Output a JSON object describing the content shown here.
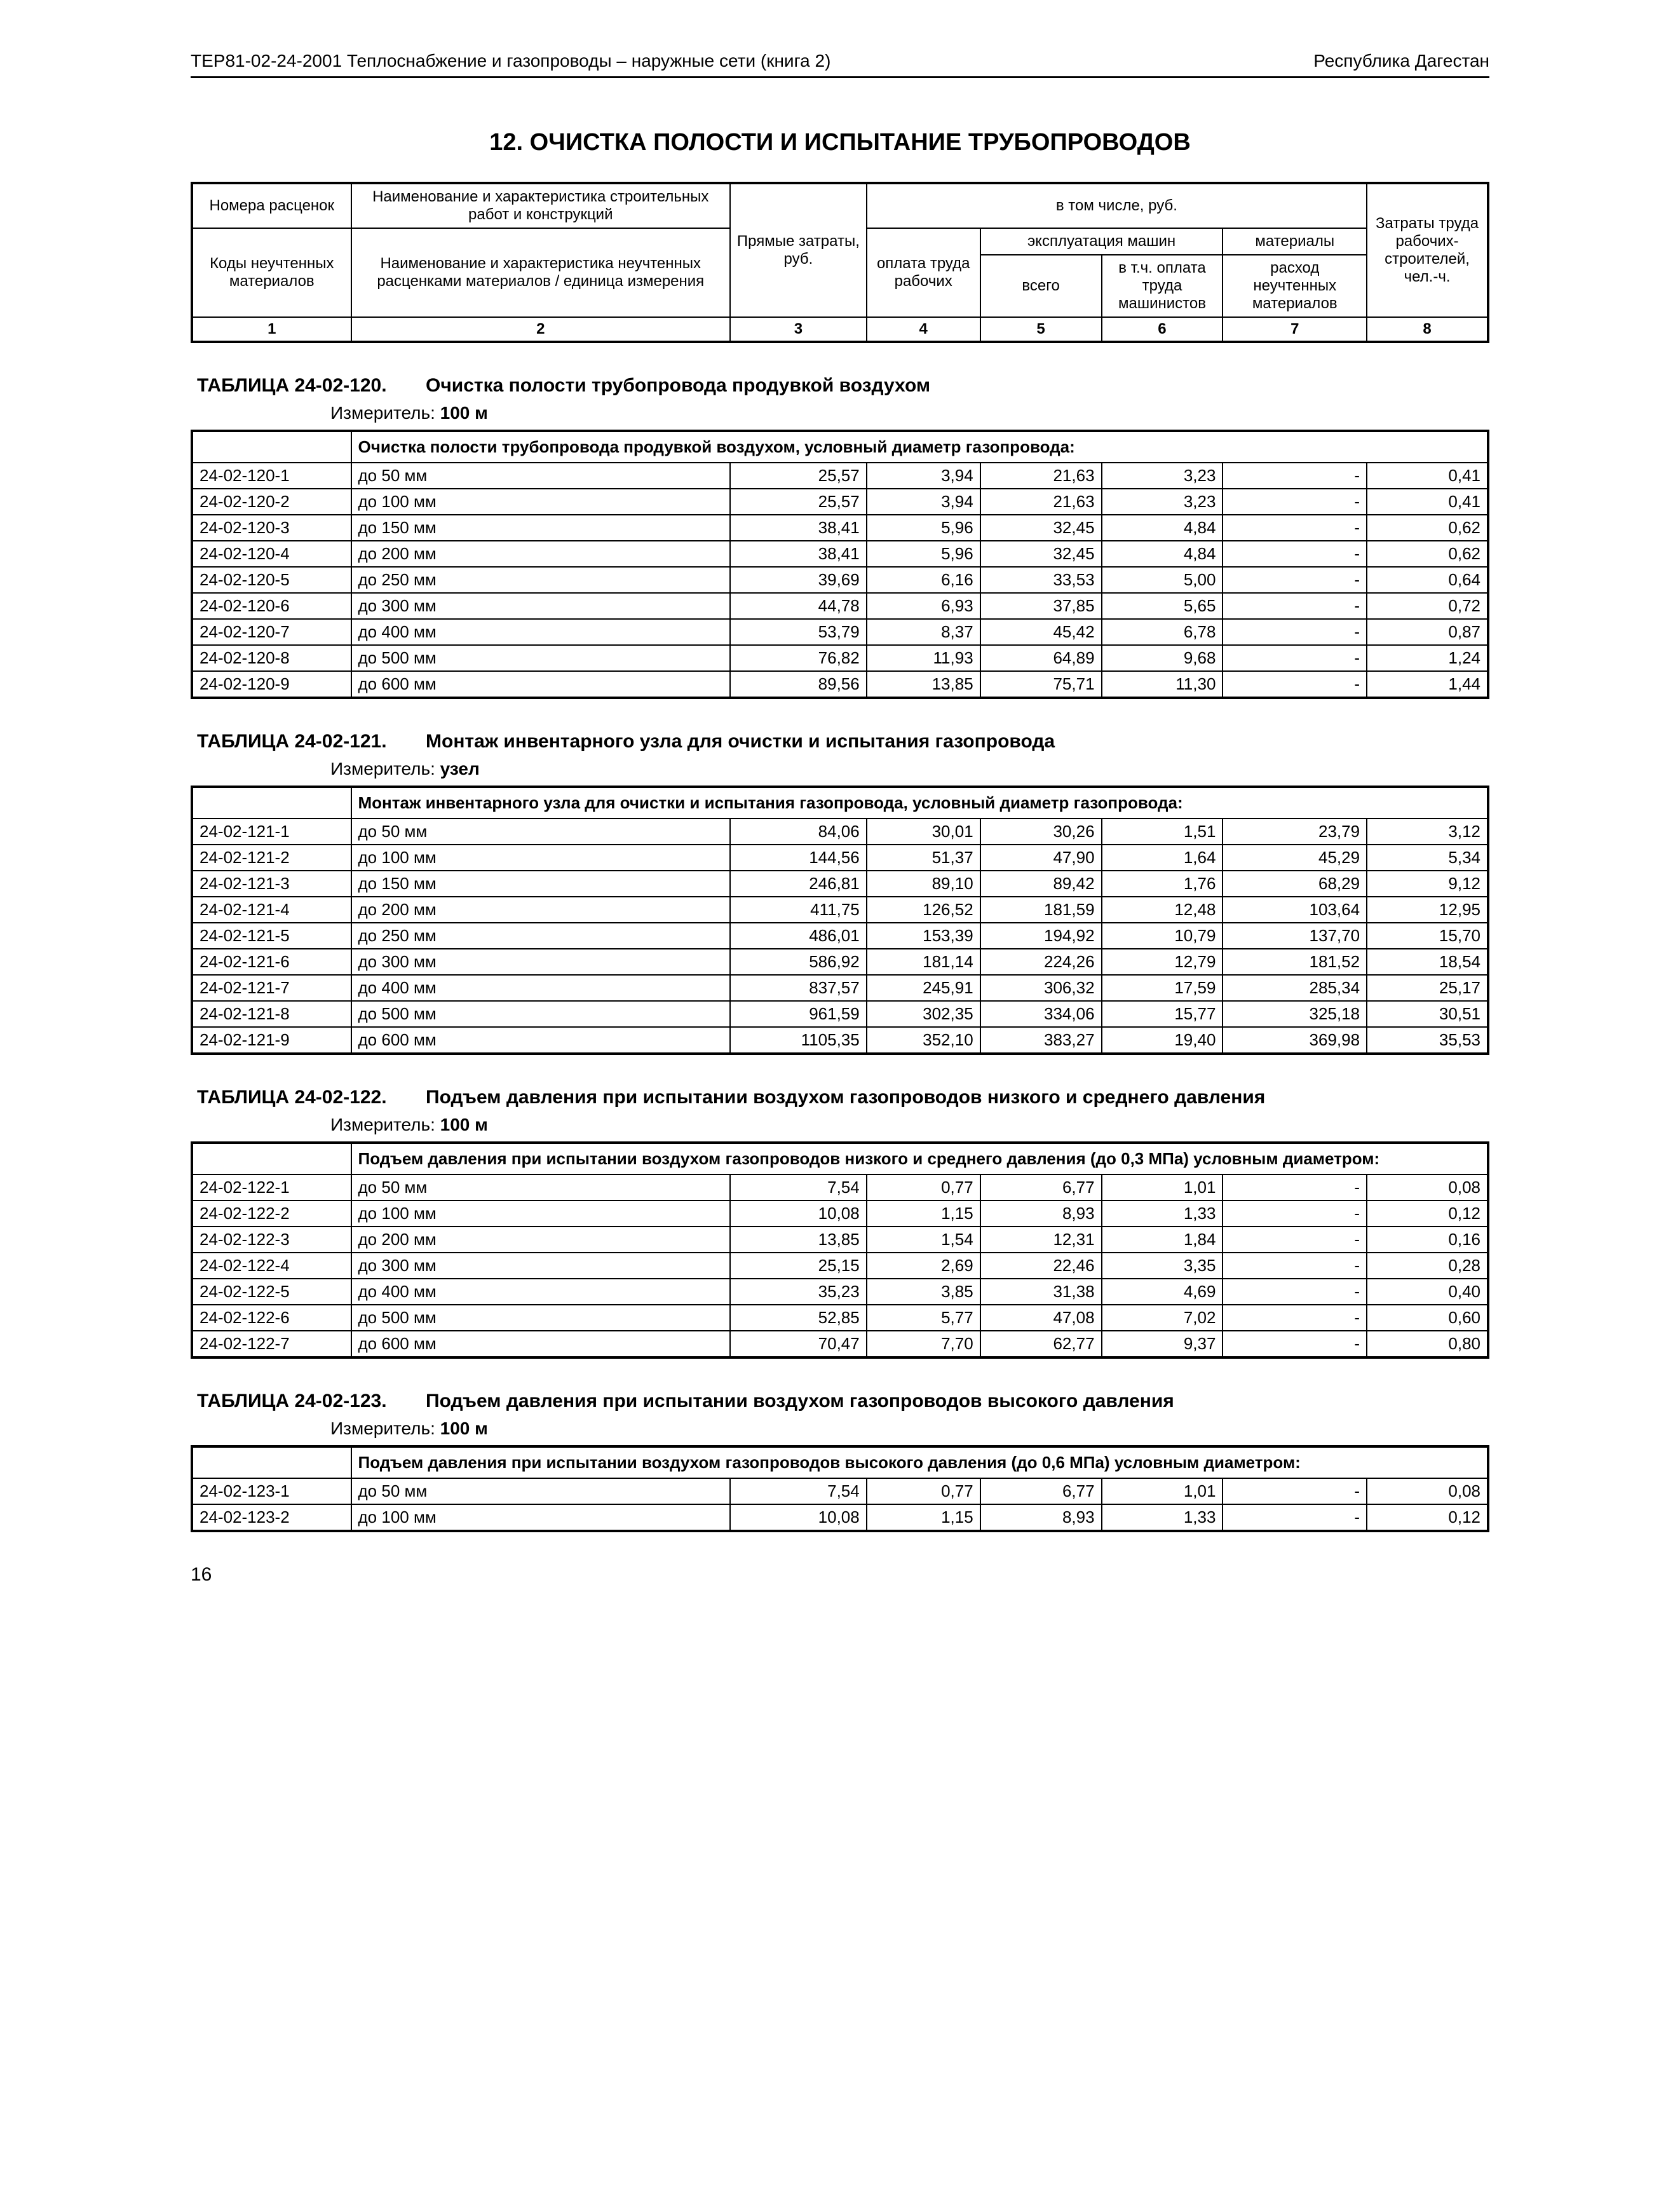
{
  "header_left": "ТЕР81-02-24-2001  Теплоснабжение и газопроводы – наружные сети (книга 2)",
  "header_right": "Республика Дагестан",
  "section_title": "12. ОЧИСТКА ПОЛОСТИ И ИСПЫТАНИЕ ТРУБОПРОВОДОВ",
  "head": {
    "r1c1": "Номера расценок",
    "r1c2": "Наименование и характеристика строительных работ и конструкций",
    "r1c3": "Прямые затраты, руб.",
    "r1c4_group": "в том числе, руб.",
    "r1c8": "Затраты труда рабочих-строителей, чел.-ч.",
    "r2c4": "оплата труда рабочих",
    "r2c5_group": "эксплуатация машин",
    "r2c7": "материалы",
    "r3c1": "Коды неучтенных материалов",
    "r3c2": "Наименование и характеристика неучтенных расценками материалов / единица измерения",
    "r3c5": "всего",
    "r3c6": "в т.ч. оплата труда машинистов",
    "r3c7": "расход неучтенных материалов",
    "idx": [
      "1",
      "2",
      "3",
      "4",
      "5",
      "6",
      "7",
      "8"
    ]
  },
  "tables": [
    {
      "code": "ТАБЛИЦА  24-02-120.",
      "title": "Очистка полости трубопровода продувкой воздухом",
      "measure_label": "Измеритель:",
      "measure_value": "100 м",
      "group_header": "Очистка полости трубопровода продувкой воздухом, условный диаметр газопровода:",
      "rows": [
        [
          "24-02-120-1",
          "до 50 мм",
          "25,57",
          "3,94",
          "21,63",
          "3,23",
          "-",
          "0,41"
        ],
        [
          "24-02-120-2",
          "до 100 мм",
          "25,57",
          "3,94",
          "21,63",
          "3,23",
          "-",
          "0,41"
        ],
        [
          "24-02-120-3",
          "до 150 мм",
          "38,41",
          "5,96",
          "32,45",
          "4,84",
          "-",
          "0,62"
        ],
        [
          "24-02-120-4",
          "до 200 мм",
          "38,41",
          "5,96",
          "32,45",
          "4,84",
          "-",
          "0,62"
        ],
        [
          "24-02-120-5",
          "до 250 мм",
          "39,69",
          "6,16",
          "33,53",
          "5,00",
          "-",
          "0,64"
        ],
        [
          "24-02-120-6",
          "до 300 мм",
          "44,78",
          "6,93",
          "37,85",
          "5,65",
          "-",
          "0,72"
        ],
        [
          "24-02-120-7",
          "до 400 мм",
          "53,79",
          "8,37",
          "45,42",
          "6,78",
          "-",
          "0,87"
        ],
        [
          "24-02-120-8",
          "до 500 мм",
          "76,82",
          "11,93",
          "64,89",
          "9,68",
          "-",
          "1,24"
        ],
        [
          "24-02-120-9",
          "до 600 мм",
          "89,56",
          "13,85",
          "75,71",
          "11,30",
          "-",
          "1,44"
        ]
      ]
    },
    {
      "code": "ТАБЛИЦА  24-02-121.",
      "title": "Монтаж инвентарного узла для очистки и испытания газопровода",
      "measure_label": "Измеритель:",
      "measure_value": "узел",
      "group_header": "Монтаж инвентарного узла для очистки и испытания газопровода, условный диаметр газопровода:",
      "rows": [
        [
          "24-02-121-1",
          "до 50 мм",
          "84,06",
          "30,01",
          "30,26",
          "1,51",
          "23,79",
          "3,12"
        ],
        [
          "24-02-121-2",
          "до 100 мм",
          "144,56",
          "51,37",
          "47,90",
          "1,64",
          "45,29",
          "5,34"
        ],
        [
          "24-02-121-3",
          "до 150 мм",
          "246,81",
          "89,10",
          "89,42",
          "1,76",
          "68,29",
          "9,12"
        ],
        [
          "24-02-121-4",
          "до 200 мм",
          "411,75",
          "126,52",
          "181,59",
          "12,48",
          "103,64",
          "12,95"
        ],
        [
          "24-02-121-5",
          "до 250 мм",
          "486,01",
          "153,39",
          "194,92",
          "10,79",
          "137,70",
          "15,70"
        ],
        [
          "24-02-121-6",
          "до 300 мм",
          "586,92",
          "181,14",
          "224,26",
          "12,79",
          "181,52",
          "18,54"
        ],
        [
          "24-02-121-7",
          "до 400 мм",
          "837,57",
          "245,91",
          "306,32",
          "17,59",
          "285,34",
          "25,17"
        ],
        [
          "24-02-121-8",
          "до 500 мм",
          "961,59",
          "302,35",
          "334,06",
          "15,77",
          "325,18",
          "30,51"
        ],
        [
          "24-02-121-9",
          "до 600 мм",
          "1105,35",
          "352,10",
          "383,27",
          "19,40",
          "369,98",
          "35,53"
        ]
      ]
    },
    {
      "code": "ТАБЛИЦА  24-02-122.",
      "title": "Подъем давления при испытании воздухом газопроводов низкого и среднего давления",
      "measure_label": "Измеритель:",
      "measure_value": "100 м",
      "group_header": "Подъем давления при испытании воздухом газопроводов низкого и среднего давления (до 0,3 МПа) условным диаметром:",
      "rows": [
        [
          "24-02-122-1",
          "до 50 мм",
          "7,54",
          "0,77",
          "6,77",
          "1,01",
          "-",
          "0,08"
        ],
        [
          "24-02-122-2",
          "до 100 мм",
          "10,08",
          "1,15",
          "8,93",
          "1,33",
          "-",
          "0,12"
        ],
        [
          "24-02-122-3",
          "до 200 мм",
          "13,85",
          "1,54",
          "12,31",
          "1,84",
          "-",
          "0,16"
        ],
        [
          "24-02-122-4",
          "до 300 мм",
          "25,15",
          "2,69",
          "22,46",
          "3,35",
          "-",
          "0,28"
        ],
        [
          "24-02-122-5",
          "до 400 мм",
          "35,23",
          "3,85",
          "31,38",
          "4,69",
          "-",
          "0,40"
        ],
        [
          "24-02-122-6",
          "до 500 мм",
          "52,85",
          "5,77",
          "47,08",
          "7,02",
          "-",
          "0,60"
        ],
        [
          "24-02-122-7",
          "до 600 мм",
          "70,47",
          "7,70",
          "62,77",
          "9,37",
          "-",
          "0,80"
        ]
      ]
    },
    {
      "code": "ТАБЛИЦА  24-02-123.",
      "title": "Подъем давления при испытании воздухом газопроводов высокого давления",
      "measure_label": "Измеритель:",
      "measure_value": "100 м",
      "group_header": "Подъем давления при испытании воздухом газопроводов высокого давления (до 0,6 МПа) условным диаметром:",
      "rows": [
        [
          "24-02-123-1",
          "до 50 мм",
          "7,54",
          "0,77",
          "6,77",
          "1,01",
          "-",
          "0,08"
        ],
        [
          "24-02-123-2",
          "до 100 мм",
          "10,08",
          "1,15",
          "8,93",
          "1,33",
          "-",
          "0,12"
        ]
      ]
    }
  ],
  "page_number": "16"
}
